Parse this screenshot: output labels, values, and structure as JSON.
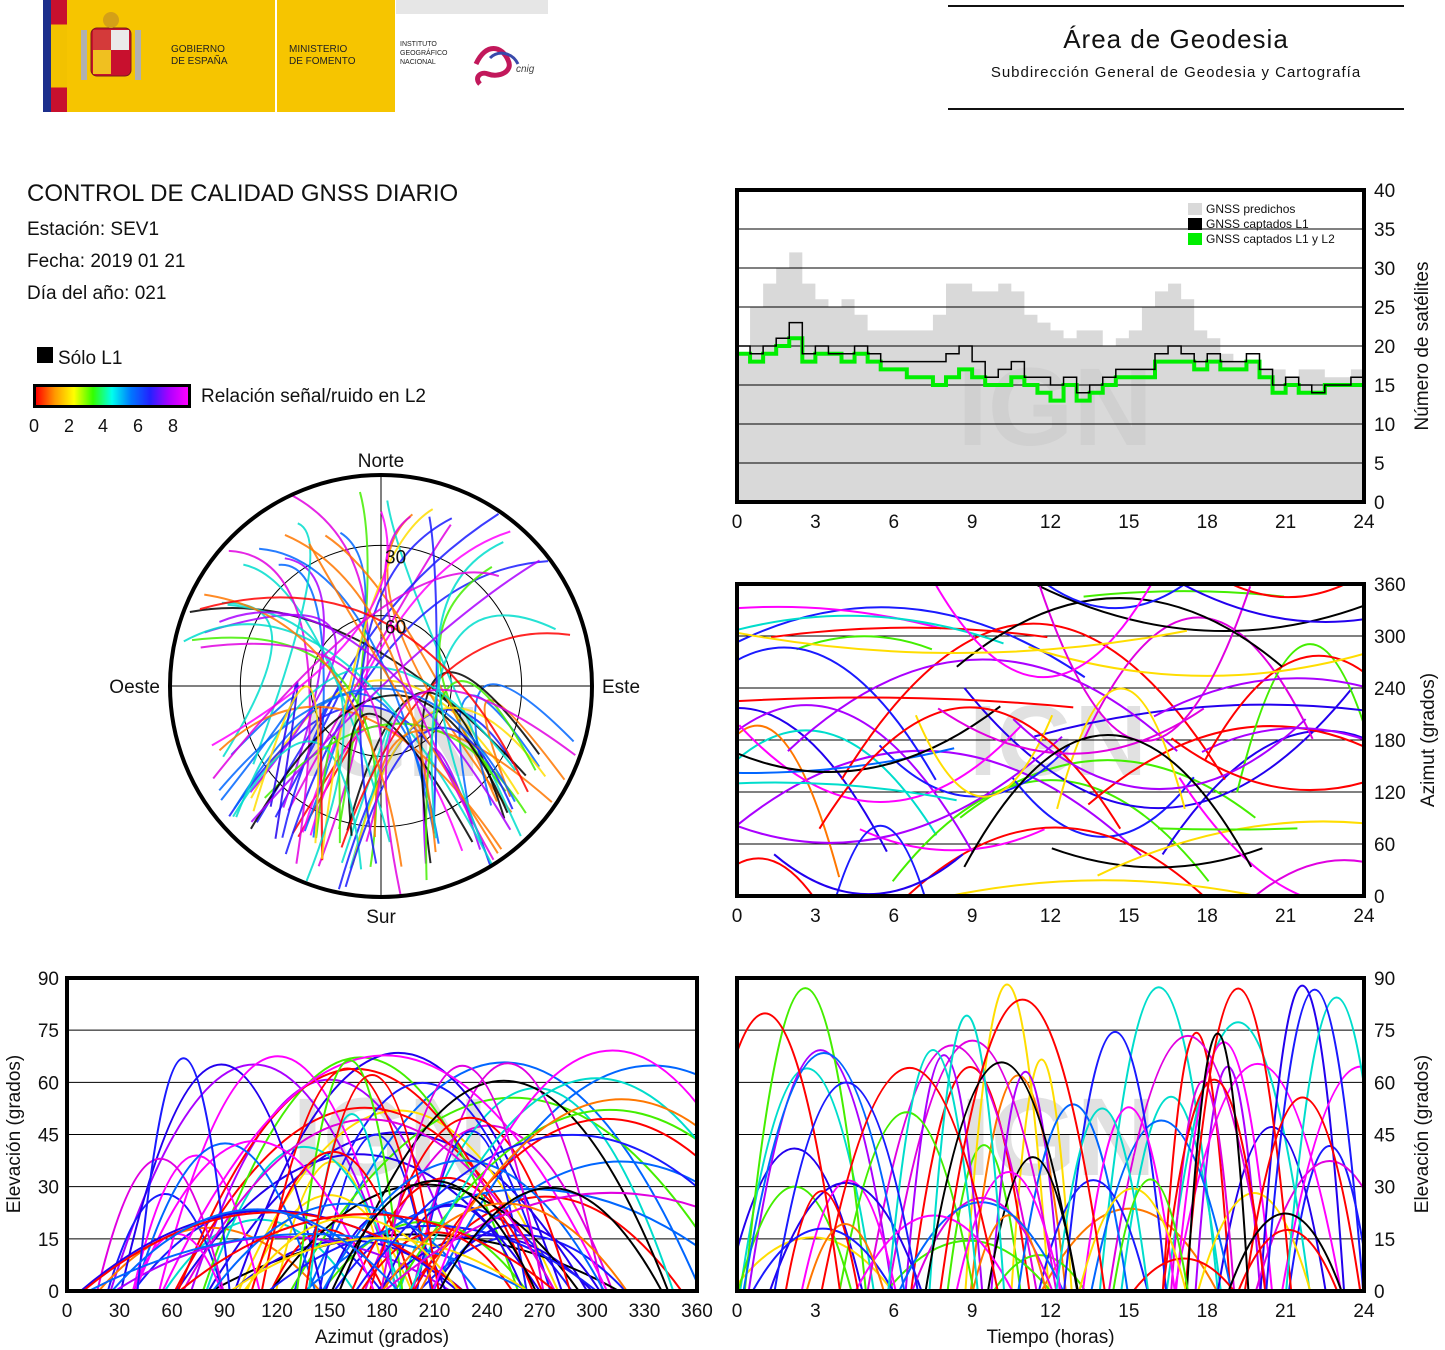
{
  "header": {
    "gov_label_1": "GOBIERNO",
    "gov_label_2": "DE ESPAÑA",
    "min_label_1": "MINISTERIO",
    "min_label_2": "DE FOMENTO",
    "ign_label_1": "INSTITUTO",
    "ign_label_2": "GEOGRÁFICO",
    "ign_label_3": "NACIONAL",
    "cnig_label": "cnig",
    "area_title": "Área de Geodesia",
    "area_subtitle": "Subdirección General de Geodesia y Cartografía"
  },
  "report": {
    "title": "CONTROL DE CALIDAD GNSS DIARIO",
    "station": "Estación: SEV1",
    "date": "Fecha: 2019 01 21",
    "doy": "Día del año: 021"
  },
  "legend": {
    "solo_l1": "Sólo L1",
    "snr_label": "Relación señal/ruido en L2",
    "snr_ticks": [
      "0",
      "2",
      "4",
      "6",
      "8"
    ]
  },
  "colors": {
    "predicted": "#d9d9d9",
    "l1": "#000000",
    "l1l2": "#00ee00",
    "watermark": "#c8c8c8"
  },
  "watermark": "IGN",
  "chart_data": [
    {
      "id": "satellite-count",
      "type": "area",
      "ylabel": "Número de satélites",
      "xlim": [
        0,
        24
      ],
      "ylim": [
        0,
        40
      ],
      "xticks": [
        "0",
        "3",
        "6",
        "9",
        "12",
        "15",
        "18",
        "21",
        "24"
      ],
      "yticks": [
        "0",
        "5",
        "10",
        "15",
        "20",
        "25",
        "30",
        "35",
        "40"
      ],
      "legend": [
        "GNSS predichos",
        "GNSS captados L1",
        "GNSS captados L1 y L2"
      ],
      "x": [
        0,
        0.5,
        1,
        1.5,
        2,
        2.5,
        3,
        3.5,
        4,
        4.5,
        5,
        5.5,
        6,
        6.5,
        7,
        7.5,
        8,
        8.5,
        9,
        9.5,
        10,
        10.5,
        11,
        11.5,
        12,
        12.5,
        13,
        13.5,
        14,
        14.5,
        15,
        15.5,
        16,
        16.5,
        17,
        17.5,
        18,
        18.5,
        19,
        19.5,
        20,
        20.5,
        21,
        21.5,
        22,
        22.5,
        23,
        23.5,
        24
      ],
      "series": [
        {
          "name": "GNSS predichos",
          "values": [
            19,
            25,
            28,
            30,
            32,
            28,
            26,
            25,
            26,
            24,
            22,
            22,
            22,
            22,
            22,
            24,
            28,
            28,
            27,
            27,
            28,
            27,
            24,
            23,
            22,
            21,
            22,
            22,
            20,
            21,
            22,
            25,
            27,
            28,
            26,
            22,
            21,
            19,
            18,
            18,
            17,
            17,
            16,
            17,
            17,
            16,
            16,
            17,
            18
          ]
        },
        {
          "name": "GNSS captados L1",
          "values": [
            20,
            19,
            20,
            21,
            23,
            19,
            20,
            19,
            19,
            20,
            19,
            18,
            18,
            18,
            18,
            18,
            19,
            20,
            18,
            16,
            17,
            18,
            16,
            16,
            15,
            16,
            14,
            15,
            16,
            17,
            17,
            17,
            19,
            20,
            19,
            18,
            19,
            18,
            18,
            19,
            17,
            15,
            16,
            15,
            14,
            15,
            15,
            16,
            17
          ]
        },
        {
          "name": "GNSS captados L1 y L2",
          "values": [
            19,
            18,
            19,
            20,
            21,
            18,
            19,
            19,
            18,
            19,
            18,
            17,
            17,
            16,
            16,
            15,
            16,
            17,
            16,
            15,
            15,
            16,
            15,
            14,
            13,
            15,
            13,
            14,
            15,
            16,
            16,
            16,
            18,
            18,
            18,
            17,
            18,
            17,
            17,
            18,
            16,
            14,
            15,
            14,
            14,
            15,
            15,
            15,
            16
          ]
        }
      ]
    },
    {
      "id": "skyplot",
      "type": "scatter",
      "cardinals": [
        "Norte",
        "Este",
        "Sur",
        "Oeste"
      ],
      "elevation_rings": [
        "30",
        "60"
      ]
    },
    {
      "id": "azimuth-vs-time",
      "type": "scatter",
      "ylabel": "Azimut (grados)",
      "xlim": [
        0,
        24
      ],
      "ylim": [
        0,
        360
      ],
      "xticks": [
        "0",
        "3",
        "6",
        "9",
        "12",
        "15",
        "18",
        "21",
        "24"
      ],
      "yticks": [
        "0",
        "60",
        "120",
        "180",
        "240",
        "300",
        "360"
      ]
    },
    {
      "id": "elevation-vs-azimuth",
      "type": "scatter",
      "xlabel": "Azimut (grados)",
      "ylabel": "Elevación (grados)",
      "xlim": [
        0,
        360
      ],
      "ylim": [
        0,
        90
      ],
      "xticks": [
        "0",
        "30",
        "60",
        "90",
        "120",
        "150",
        "180",
        "210",
        "240",
        "270",
        "300",
        "330",
        "360"
      ],
      "yticks": [
        "0",
        "15",
        "30",
        "45",
        "60",
        "75",
        "90"
      ]
    },
    {
      "id": "elevation-vs-time",
      "type": "scatter",
      "xlabel": "Tiempo (horas)",
      "ylabel": "Elevación (grados)",
      "xlim": [
        0,
        24
      ],
      "ylim": [
        0,
        90
      ],
      "xticks": [
        "0",
        "3",
        "6",
        "9",
        "12",
        "15",
        "18",
        "21",
        "24"
      ],
      "yticks": [
        "0",
        "15",
        "30",
        "45",
        "60",
        "75",
        "90"
      ]
    }
  ]
}
